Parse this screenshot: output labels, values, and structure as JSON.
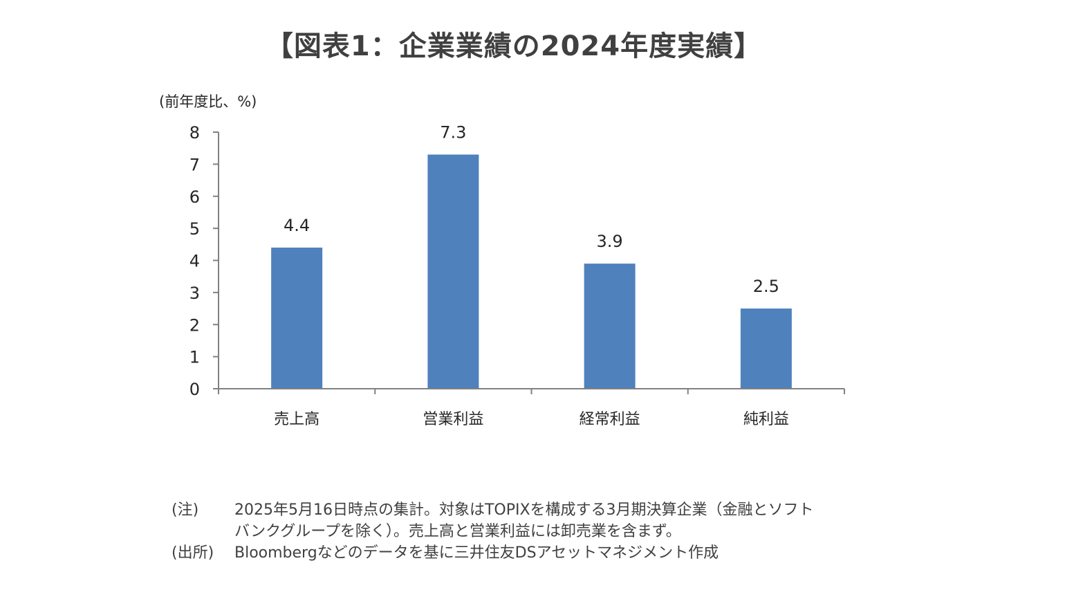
{
  "title": "【図表1：企業業績の2024年度実績】",
  "chart_data": {
    "type": "bar",
    "ylabel": "(前年度比、%)",
    "categories": [
      "売上高",
      "営業利益",
      "経常利益",
      "純利益"
    ],
    "values": [
      4.4,
      7.3,
      3.9,
      2.5
    ],
    "data_labels": [
      "4.4",
      "7.3",
      "3.9",
      "2.5"
    ],
    "ylim": [
      0,
      8
    ],
    "yticks": [
      "0",
      "1",
      "2",
      "3",
      "4",
      "5",
      "6",
      "7",
      "8"
    ],
    "bar_color": "#4f81bd",
    "grid": false,
    "legend": "none"
  },
  "notes": {
    "note_label": "(注)",
    "note_line1": "2025年5月16日時点の集計。対象はTOPIXを構成する3月期決算企業（金融とソフト",
    "note_line2": "バンクグループを除く）。売上高と営業利益には卸売業を含まず。",
    "source_label": "(出所)",
    "source_text": "Bloombergなどのデータを基に三井住友DSアセットマネジメント作成"
  }
}
